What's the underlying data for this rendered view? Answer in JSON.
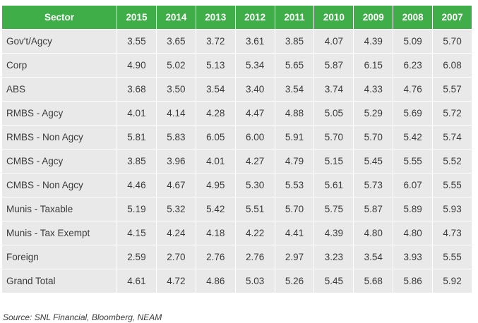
{
  "chart_data": {
    "type": "table",
    "columns": [
      "Sector",
      "2015",
      "2014",
      "2013",
      "2012",
      "2011",
      "2010",
      "2009",
      "2008",
      "2007"
    ],
    "rows": [
      [
        "Gov't/Agcy",
        "3.55",
        "3.65",
        "3.72",
        "3.61",
        "3.85",
        "4.07",
        "4.39",
        "5.09",
        "5.70"
      ],
      [
        "Corp",
        "4.90",
        "5.02",
        "5.13",
        "5.34",
        "5.65",
        "5.87",
        "6.15",
        "6.23",
        "6.08"
      ],
      [
        "ABS",
        "3.68",
        "3.50",
        "3.54",
        "3.40",
        "3.54",
        "3.74",
        "4.33",
        "4.76",
        "5.57"
      ],
      [
        "RMBS - Agcy",
        "4.01",
        "4.14",
        "4.28",
        "4.47",
        "4.88",
        "5.05",
        "5.29",
        "5.69",
        "5.72"
      ],
      [
        "RMBS - Non Agcy",
        "5.81",
        "5.83",
        "6.05",
        "6.00",
        "5.91",
        "5.70",
        "5.70",
        "5.42",
        "5.74"
      ],
      [
        "CMBS - Agcy",
        "3.85",
        "3.96",
        "4.01",
        "4.27",
        "4.79",
        "5.15",
        "5.45",
        "5.55",
        "5.52"
      ],
      [
        "CMBS - Non Agcy",
        "4.46",
        "4.67",
        "4.95",
        "5.30",
        "5.53",
        "5.61",
        "5.73",
        "6.07",
        "5.55"
      ],
      [
        "Munis - Taxable",
        "5.19",
        "5.32",
        "5.42",
        "5.51",
        "5.70",
        "5.75",
        "5.87",
        "5.89",
        "5.93"
      ],
      [
        "Munis - Tax Exempt",
        "4.15",
        "4.24",
        "4.18",
        "4.22",
        "4.41",
        "4.39",
        "4.80",
        "4.80",
        "4.73"
      ],
      [
        "Foreign",
        "2.59",
        "2.70",
        "2.76",
        "2.76",
        "2.97",
        "3.23",
        "3.54",
        "3.93",
        "5.55"
      ],
      [
        "Grand Total",
        "4.61",
        "4.72",
        "4.86",
        "5.03",
        "5.26",
        "5.45",
        "5.68",
        "5.86",
        "5.92"
      ]
    ],
    "source": "Source: SNL Financial, Bloomberg, NEAM"
  },
  "colors": {
    "header_bg": "#3fae49",
    "header_text": "#ffffff",
    "cell_bg": "#e9e9e9",
    "cell_text": "#3a3a3a"
  }
}
